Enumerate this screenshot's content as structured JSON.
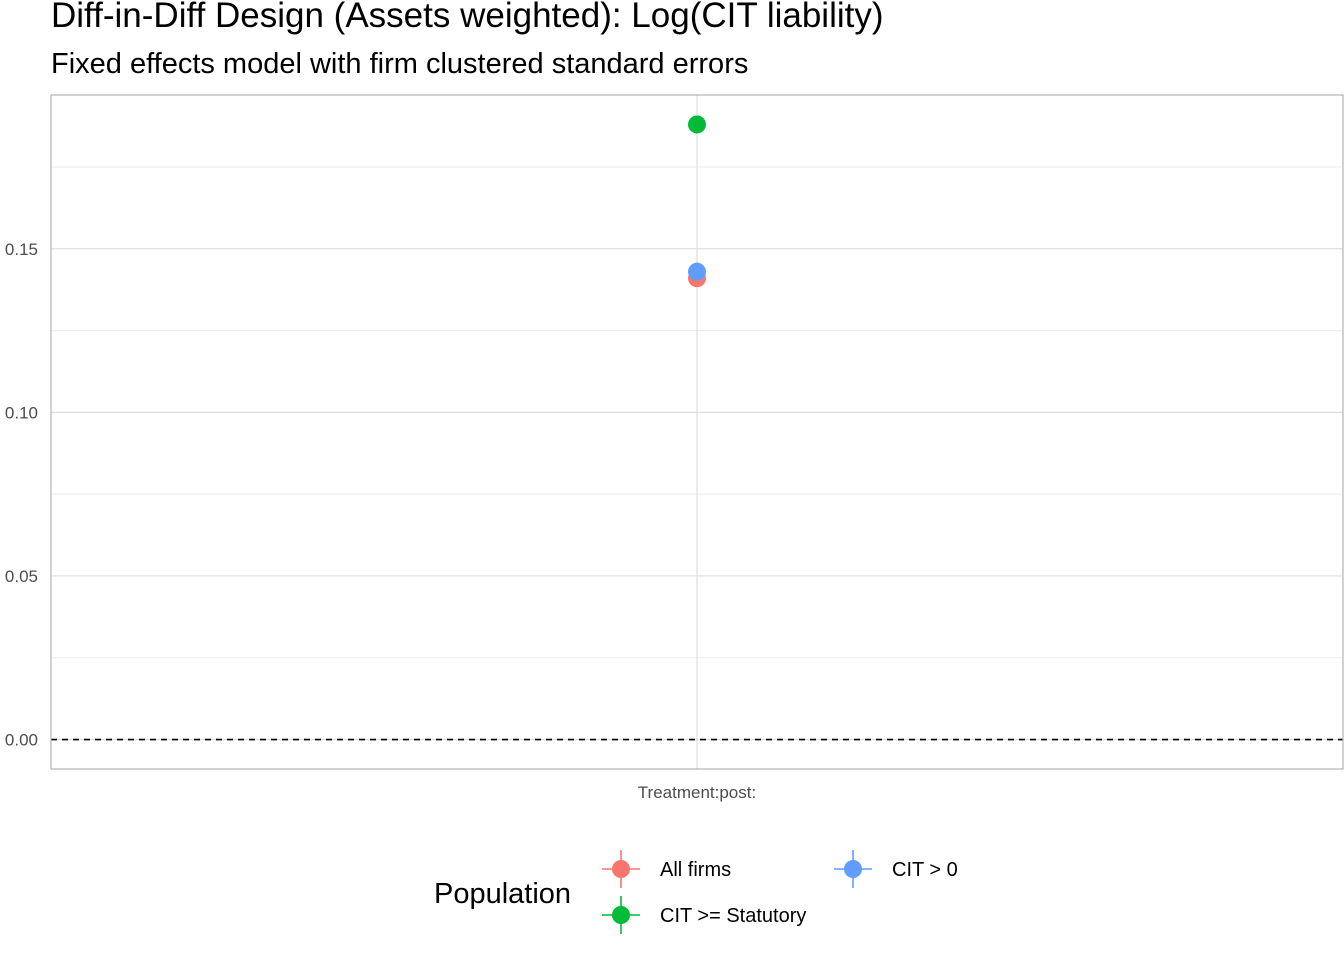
{
  "chart_data": {
    "type": "scatter",
    "title": "Diff-in-Diff Design (Assets weighted): Log(CIT liability)",
    "subtitle": "Fixed effects model with firm clustered standard errors",
    "xlabel": "",
    "ylabel": "",
    "categories": [
      "Treatment:post:"
    ],
    "y_ticks": [
      "0.00",
      "0.05",
      "0.10",
      "0.15"
    ],
    "y_tick_values": [
      0.0,
      0.05,
      0.1,
      0.15
    ],
    "ylim": [
      -0.009,
      0.197
    ],
    "grid": true,
    "reference_line": {
      "y": 0,
      "style": "dashed"
    },
    "legend": {
      "title": "Population",
      "position": "bottom",
      "entries": [
        "All firms",
        "CIT > 0",
        "CIT >= Statutory"
      ]
    },
    "series": [
      {
        "name": "All firms",
        "color": "#F8766D",
        "values": [
          0.141
        ]
      },
      {
        "name": "CIT > 0",
        "color": "#619CFF",
        "values": [
          0.143
        ]
      },
      {
        "name": "CIT >= Statutory",
        "color": "#00BA38",
        "values": [
          0.188
        ]
      }
    ]
  }
}
